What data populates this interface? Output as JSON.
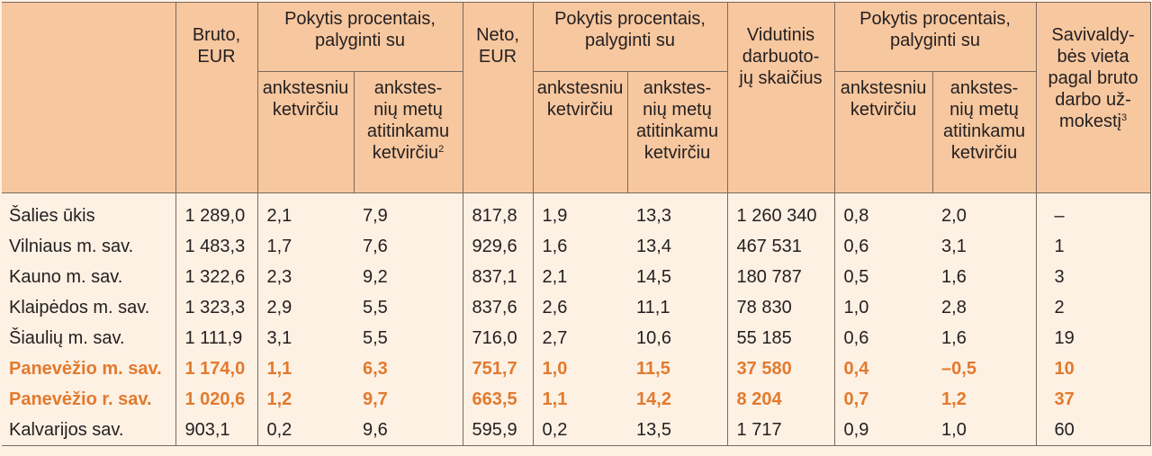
{
  "headers": {
    "stub": "",
    "bruto": "Bruto,\nEUR",
    "bruto_change": "Pokytis procentais,\npalyginti su",
    "neto": "Neto,\nEUR",
    "neto_change": "Pokytis procentais,\npalyginti su",
    "employees": "Vidutinis\ndarbuoto-\njų skaičius",
    "employees_change": "Pokytis procentais,\npalyginti su",
    "rank": "Savivaldy-\nbės vieta\npagal bruto\ndarbo už-\nmokestį",
    "rank_sup": "3",
    "prev_quarter": "ankstesniu\nketvirčiu",
    "prev_year": "ankstes-\nnių metų\natitinkamu\nketvirčiu",
    "prev_year_sup": "2"
  },
  "rows": [
    {
      "name": "Šalies ūkis",
      "bruto": "1 289,0",
      "b_q": "2,1",
      "b_y": "7,9",
      "neto": "817,8",
      "n_q": "1,9",
      "n_y": "13,3",
      "emp": "1 260 340",
      "e_q": "0,8",
      "e_y": "2,0",
      "rank": "–",
      "highlight": false
    },
    {
      "name": "Vilniaus m. sav.",
      "bruto": "1 483,3",
      "b_q": "1,7",
      "b_y": "7,6",
      "neto": "929,6",
      "n_q": "1,6",
      "n_y": "13,4",
      "emp": "467 531",
      "e_q": "0,6",
      "e_y": "3,1",
      "rank": "1",
      "highlight": false
    },
    {
      "name": "Kauno m. sav.",
      "bruto": "1 322,6",
      "b_q": "2,3",
      "b_y": "9,2",
      "neto": "837,1",
      "n_q": "2,1",
      "n_y": "14,5",
      "emp": "180 787",
      "e_q": "0,5",
      "e_y": "1,6",
      "rank": "3",
      "highlight": false
    },
    {
      "name": "Klaipėdos m. sav.",
      "bruto": "1 323,3",
      "b_q": "2,9",
      "b_y": "5,5",
      "neto": "837,6",
      "n_q": "2,6",
      "n_y": "11,1",
      "emp": "78 830",
      "e_q": "1,0",
      "e_y": "2,8",
      "rank": "2",
      "highlight": false
    },
    {
      "name": "Šiaulių m. sav.",
      "bruto": "1 111,9",
      "b_q": "3,1",
      "b_y": "5,5",
      "neto": "716,0",
      "n_q": "2,7",
      "n_y": "10,6",
      "emp": "55 185",
      "e_q": "0,6",
      "e_y": "1,6",
      "rank": "19",
      "highlight": false
    },
    {
      "name": "Panevėžio m. sav.",
      "bruto": "1 174,0",
      "b_q": "1,1",
      "b_y": "6,3",
      "neto": "751,7",
      "n_q": "1,0",
      "n_y": "11,5",
      "emp": "37 580",
      "e_q": "0,4",
      "e_y": "–0,5",
      "rank": "10",
      "highlight": true
    },
    {
      "name": "Panevėžio r. sav.",
      "bruto": "1 020,6",
      "b_q": "1,2",
      "b_y": "9,7",
      "neto": "663,5",
      "n_q": "1,1",
      "n_y": "14,2",
      "emp": "8 204",
      "e_q": "0,7",
      "e_y": "1,2",
      "rank": "37",
      "highlight": true
    },
    {
      "name": "Kalvarijos sav.",
      "bruto": "903,1",
      "b_q": "0,2",
      "b_y": "9,6",
      "neto": "595,9",
      "n_q": "0,2",
      "n_y": "13,5",
      "emp": "1 717",
      "e_q": "0,9",
      "e_y": "1,0",
      "rank": "60",
      "highlight": false
    }
  ]
}
